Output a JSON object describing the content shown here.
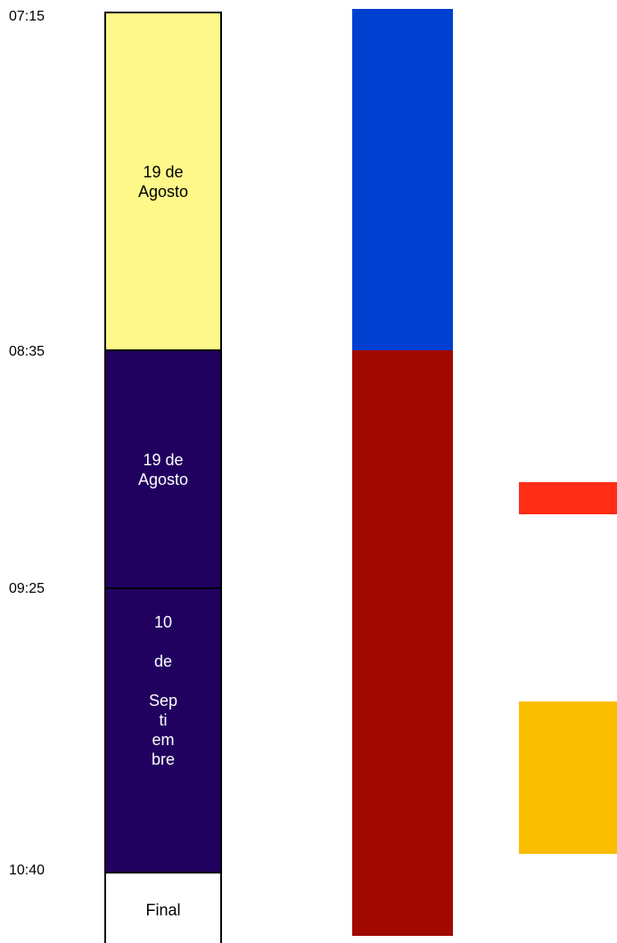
{
  "time_labels": [
    "07:15",
    "08:35",
    "09:25",
    "10:40"
  ],
  "segments": [
    {
      "text": "19 de\nAgosto",
      "fill": "#fdf889",
      "text_color": "#000000"
    },
    {
      "text": "19 de\nAgosto",
      "fill": "#210160",
      "text_color": "#ffffff"
    },
    {
      "text": "10\n\nde\n\nSep\nti\nem\nbre",
      "fill": "#210160",
      "text_color": "#ffffff"
    },
    {
      "text": "Final",
      "fill": "#ffffff",
      "text_color": "#000000"
    }
  ],
  "bars": {
    "blue": "#0040d0",
    "dark_red": "#a10800",
    "red": "#ff2d16",
    "orange": "#fbbd00"
  }
}
